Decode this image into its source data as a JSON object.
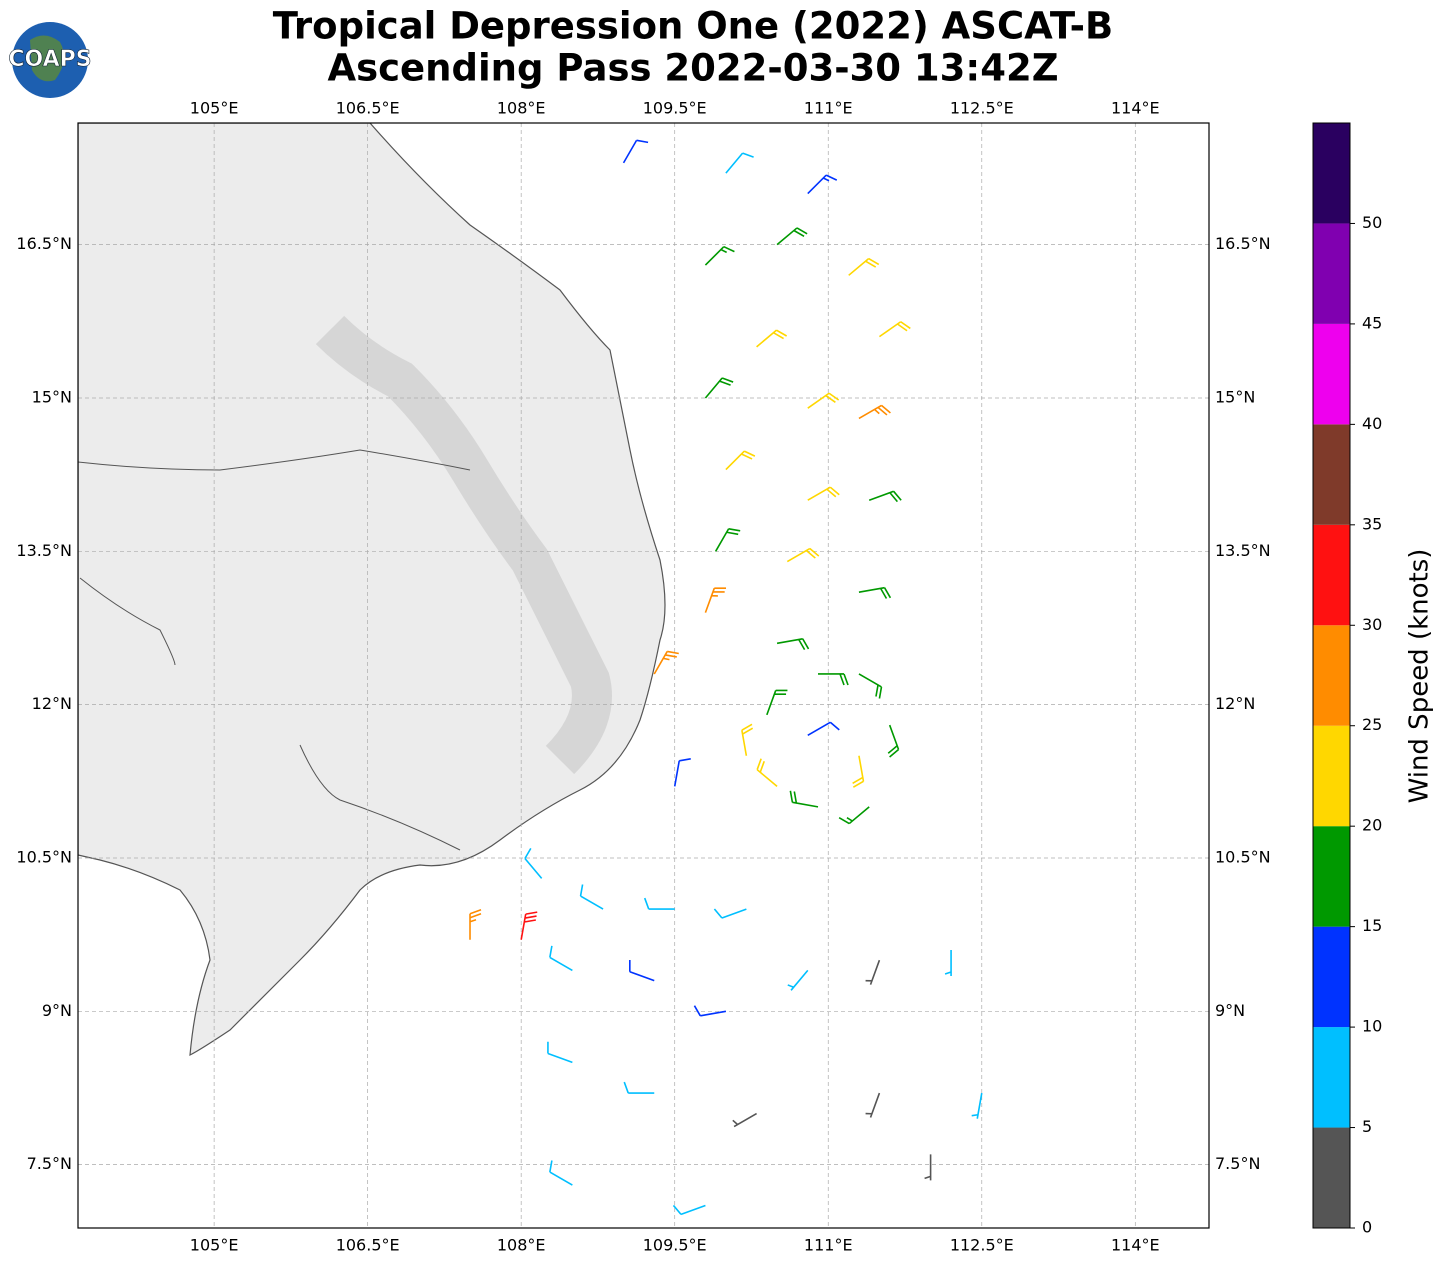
{
  "title": [
    "Tropical Depression One (2022) ASCAT-B",
    "Ascending Pass 2022-03-30 13:42Z"
  ],
  "logo_text": "COAPS",
  "map": {
    "xlim": [
      103.67,
      114.72
    ],
    "ylim": [
      6.88,
      17.69
    ],
    "xticks": [
      {
        "value": 105,
        "label": "105°E"
      },
      {
        "value": 106.5,
        "label": "106.5°E"
      },
      {
        "value": 108,
        "label": "108°E"
      },
      {
        "value": 109.5,
        "label": "109.5°E"
      },
      {
        "value": 111,
        "label": "111°E"
      },
      {
        "value": 112.5,
        "label": "112.5°E"
      },
      {
        "value": 114,
        "label": "114°E"
      }
    ],
    "yticks": [
      {
        "value": 7.5,
        "label": "7.5°N"
      },
      {
        "value": 9,
        "label": "9°N"
      },
      {
        "value": 10.5,
        "label": "10.5°N"
      },
      {
        "value": 12,
        "label": "12°N"
      },
      {
        "value": 13.5,
        "label": "13.5°N"
      },
      {
        "value": 15,
        "label": "15°N"
      },
      {
        "value": 16.5,
        "label": "16.5°N"
      }
    ],
    "grid": true
  },
  "colorbar": {
    "label": "Wind Speed (knots)",
    "lim": [
      0,
      55
    ],
    "ticks": [
      0,
      5,
      10,
      15,
      20,
      25,
      30,
      35,
      40,
      45,
      50
    ],
    "colors": [
      "#555555",
      "#00bfff",
      "#0033ff",
      "#009900",
      "#ffd700",
      "#ff8c00",
      "#ff1111",
      "#7f3a2a",
      "#ee00ee",
      "#8000b0",
      "#2a0060"
    ]
  },
  "barbs": [
    {
      "lon": 109.0,
      "lat": 17.3,
      "speed": 12,
      "direction": 30
    },
    {
      "lon": 110.0,
      "lat": 17.2,
      "speed": 8,
      "direction": 40
    },
    {
      "lon": 110.8,
      "lat": 17.0,
      "speed": 14,
      "direction": 45
    },
    {
      "lon": 110.5,
      "lat": 16.5,
      "speed": 18,
      "direction": 50
    },
    {
      "lon": 109.8,
      "lat": 16.3,
      "speed": 17,
      "direction": 45
    },
    {
      "lon": 111.2,
      "lat": 16.2,
      "speed": 20,
      "direction": 50
    },
    {
      "lon": 111.5,
      "lat": 15.6,
      "speed": 22,
      "direction": 55
    },
    {
      "lon": 110.3,
      "lat": 15.5,
      "speed": 22,
      "direction": 50
    },
    {
      "lon": 109.8,
      "lat": 15.0,
      "speed": 18,
      "direction": 40
    },
    {
      "lon": 110.8,
      "lat": 14.9,
      "speed": 22,
      "direction": 55
    },
    {
      "lon": 111.3,
      "lat": 14.8,
      "speed": 27,
      "direction": 60
    },
    {
      "lon": 110.0,
      "lat": 14.3,
      "speed": 22,
      "direction": 45
    },
    {
      "lon": 110.8,
      "lat": 14.0,
      "speed": 22,
      "direction": 60
    },
    {
      "lon": 111.4,
      "lat": 14.0,
      "speed": 18,
      "direction": 70
    },
    {
      "lon": 109.9,
      "lat": 13.5,
      "speed": 18,
      "direction": 30
    },
    {
      "lon": 110.6,
      "lat": 13.4,
      "speed": 22,
      "direction": 60
    },
    {
      "lon": 111.3,
      "lat": 13.1,
      "speed": 18,
      "direction": 80
    },
    {
      "lon": 109.8,
      "lat": 12.9,
      "speed": 27,
      "direction": 20
    },
    {
      "lon": 110.5,
      "lat": 12.6,
      "speed": 18,
      "direction": 80
    },
    {
      "lon": 111.3,
      "lat": 12.3,
      "speed": 18,
      "direction": 120
    },
    {
      "lon": 110.9,
      "lat": 12.3,
      "speed": 18,
      "direction": 90
    },
    {
      "lon": 111.6,
      "lat": 11.8,
      "speed": 18,
      "direction": 160
    },
    {
      "lon": 111.3,
      "lat": 11.5,
      "speed": 22,
      "direction": 170
    },
    {
      "lon": 110.4,
      "lat": 11.9,
      "speed": 18,
      "direction": 20
    },
    {
      "lon": 110.2,
      "lat": 11.5,
      "speed": 22,
      "direction": 350
    },
    {
      "lon": 110.5,
      "lat": 11.2,
      "speed": 22,
      "direction": 310
    },
    {
      "lon": 110.9,
      "lat": 11.0,
      "speed": 18,
      "direction": 280
    },
    {
      "lon": 111.4,
      "lat": 11.0,
      "speed": 15,
      "direction": 230
    },
    {
      "lon": 110.8,
      "lat": 11.7,
      "speed": 12,
      "direction": 60
    },
    {
      "lon": 109.5,
      "lat": 11.2,
      "speed": 12,
      "direction": 10
    },
    {
      "lon": 109.3,
      "lat": 12.3,
      "speed": 27,
      "direction": 30
    },
    {
      "lon": 108.2,
      "lat": 10.3,
      "speed": 8,
      "direction": 320
    },
    {
      "lon": 108.8,
      "lat": 10.0,
      "speed": 8,
      "direction": 300
    },
    {
      "lon": 109.5,
      "lat": 10.0,
      "speed": 8,
      "direction": 270
    },
    {
      "lon": 110.2,
      "lat": 10.0,
      "speed": 8,
      "direction": 250
    },
    {
      "lon": 108.0,
      "lat": 9.7,
      "speed": 32,
      "direction": 10
    },
    {
      "lon": 107.5,
      "lat": 9.7,
      "speed": 27,
      "direction": 0
    },
    {
      "lon": 108.5,
      "lat": 9.4,
      "speed": 8,
      "direction": 300
    },
    {
      "lon": 109.3,
      "lat": 9.3,
      "speed": 12,
      "direction": 290
    },
    {
      "lon": 110.0,
      "lat": 9.0,
      "speed": 12,
      "direction": 260
    },
    {
      "lon": 110.8,
      "lat": 9.4,
      "speed": 7,
      "direction": 220
    },
    {
      "lon": 111.5,
      "lat": 9.5,
      "speed": 3,
      "direction": 200
    },
    {
      "lon": 112.2,
      "lat": 9.6,
      "speed": 7,
      "direction": 180
    },
    {
      "lon": 108.5,
      "lat": 8.5,
      "speed": 8,
      "direction": 290
    },
    {
      "lon": 109.3,
      "lat": 8.2,
      "speed": 8,
      "direction": 270
    },
    {
      "lon": 110.3,
      "lat": 8.0,
      "speed": 4,
      "direction": 240
    },
    {
      "lon": 111.5,
      "lat": 8.2,
      "speed": 3,
      "direction": 200
    },
    {
      "lon": 112.5,
      "lat": 8.2,
      "speed": 7,
      "direction": 190
    },
    {
      "lon": 108.5,
      "lat": 7.3,
      "speed": 8,
      "direction": 300
    },
    {
      "lon": 109.8,
      "lat": 7.1,
      "speed": 8,
      "direction": 250
    },
    {
      "lon": 112.0,
      "lat": 7.6,
      "speed": 4,
      "direction": 180
    }
  ]
}
